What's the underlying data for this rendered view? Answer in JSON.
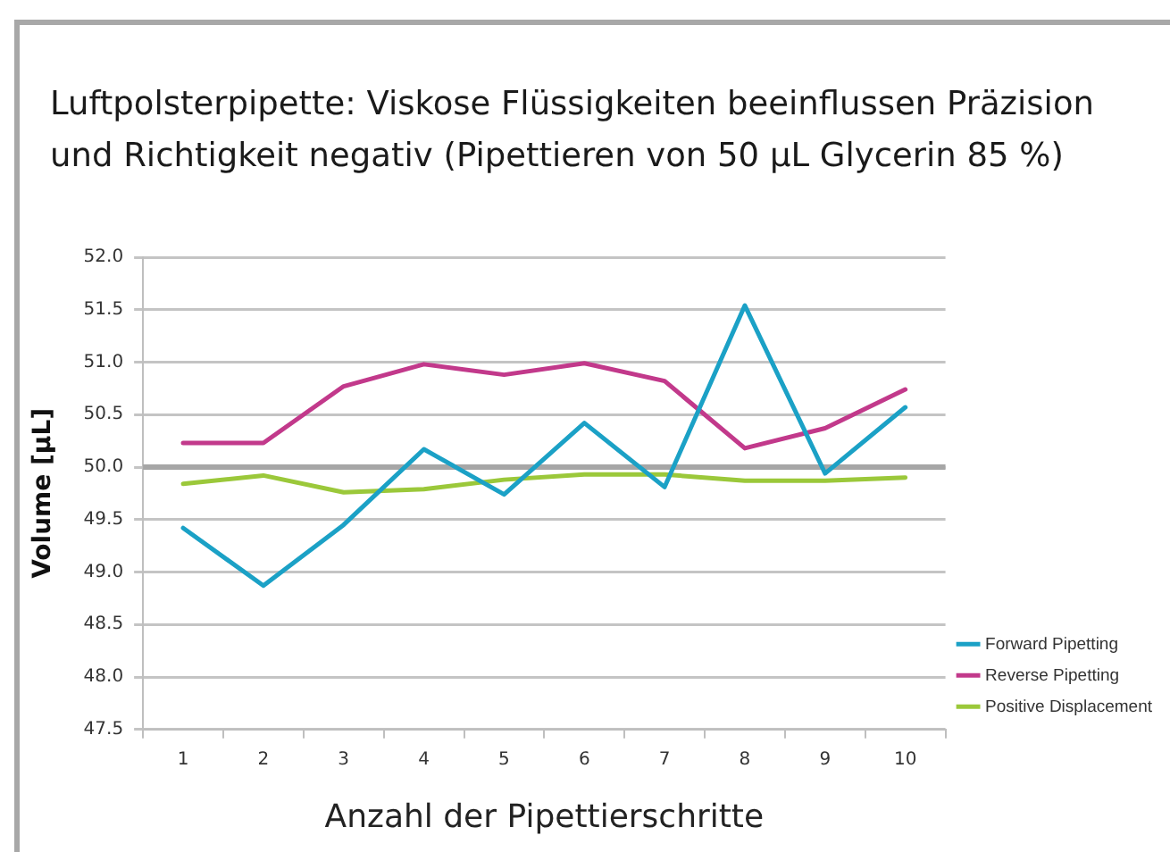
{
  "chart_data": {
    "type": "line",
    "title": "Luftpolsterpipette: Viskose Flüssigkeiten beeinflussen Präzision und Richtigkeit negativ (Pipettieren von 50 µL Glycerin 85 %)",
    "xlabel": "Anzahl der Pipettierschritte",
    "ylabel": "Volume [µL]",
    "categories": [
      "1",
      "2",
      "3",
      "4",
      "5",
      "6",
      "7",
      "8",
      "9",
      "10"
    ],
    "series": [
      {
        "name": "Forward Pipetting",
        "color": "#1ba1c6",
        "values": [
          49.42,
          48.87,
          49.45,
          50.17,
          49.74,
          50.42,
          49.81,
          51.54,
          49.94,
          50.57
        ]
      },
      {
        "name": "Reverse Pipetting",
        "color": "#c2398b",
        "values": [
          50.23,
          50.23,
          50.77,
          50.98,
          50.88,
          50.99,
          50.82,
          50.18,
          50.37,
          50.74
        ]
      },
      {
        "name": "Positive Displacement",
        "color": "#9bc83a",
        "values": [
          49.84,
          49.92,
          49.76,
          49.79,
          49.88,
          49.93,
          49.93,
          49.87,
          49.87,
          49.9
        ]
      }
    ],
    "ylim": [
      47.5,
      52
    ],
    "yticks": [
      47.5,
      {
        "value": 48,
        "label": "48.0"
      },
      48.5,
      {
        "value": 49,
        "label": "49.0"
      },
      49.5,
      {
        "value": 50,
        "label": "50.0"
      },
      50.5,
      {
        "value": 51,
        "label": "51.0"
      },
      51.5,
      {
        "value": 52,
        "label": "52.0"
      }
    ],
    "ref_lines": [
      {
        "axis": "y",
        "value": 50,
        "color": "#a6a6a6"
      }
    ],
    "grid": "y",
    "legend": "bottom right",
    "marker": "none"
  }
}
